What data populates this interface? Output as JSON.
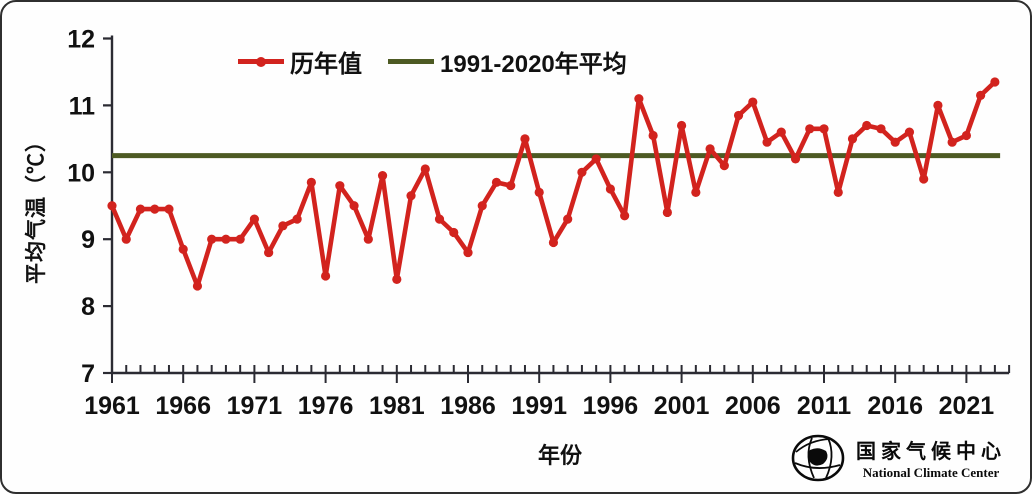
{
  "figure": {
    "y_axis_label": "平均气温（℃）",
    "x_axis_label": "年份",
    "legend": [
      {
        "label": "历年值",
        "type": "line-with-marker",
        "color": "#d2231e"
      },
      {
        "label": "1991-2020年平均",
        "type": "line",
        "color": "#4d5a23"
      }
    ],
    "logo": {
      "cn": "国家气候中心",
      "en": "National Climate Center"
    }
  },
  "chart_data": {
    "type": "line",
    "title": "",
    "xlabel": "年份",
    "ylabel": "平均气温（℃）",
    "ylim": [
      7,
      12
    ],
    "yticks": [
      7,
      8,
      9,
      10,
      11,
      12
    ],
    "xticks": [
      1961,
      1966,
      1971,
      1976,
      1981,
      1986,
      1991,
      1996,
      2001,
      2006,
      2011,
      2016,
      2021
    ],
    "grid": false,
    "legend_position": "top",
    "x": [
      1961,
      1962,
      1963,
      1964,
      1965,
      1966,
      1967,
      1968,
      1969,
      1970,
      1971,
      1972,
      1973,
      1974,
      1975,
      1976,
      1977,
      1978,
      1979,
      1980,
      1981,
      1982,
      1983,
      1984,
      1985,
      1986,
      1987,
      1988,
      1989,
      1990,
      1991,
      1992,
      1993,
      1994,
      1995,
      1996,
      1997,
      1998,
      1999,
      2000,
      2001,
      2002,
      2003,
      2004,
      2005,
      2006,
      2007,
      2008,
      2009,
      2010,
      2011,
      2012,
      2013,
      2014,
      2015,
      2016,
      2017,
      2018,
      2019,
      2020,
      2021,
      2022,
      2023
    ],
    "series": [
      {
        "name": "历年值",
        "color": "#d2231e",
        "marker": "circle",
        "values": [
          9.5,
          9.0,
          9.45,
          9.45,
          9.45,
          8.85,
          8.3,
          9.0,
          9.0,
          9.0,
          9.3,
          8.8,
          9.2,
          9.3,
          9.85,
          8.45,
          9.8,
          9.5,
          9.0,
          9.95,
          8.4,
          9.65,
          10.05,
          9.3,
          9.1,
          8.8,
          9.5,
          9.85,
          9.8,
          10.5,
          9.7,
          8.95,
          9.3,
          10.0,
          10.2,
          9.75,
          9.35,
          11.1,
          10.55,
          9.4,
          10.7,
          9.7,
          10.35,
          10.1,
          10.85,
          11.05,
          10.45,
          10.6,
          10.2,
          10.65,
          10.65,
          9.7,
          10.5,
          10.7,
          10.65,
          10.45,
          10.6,
          9.9,
          11.0,
          10.45,
          10.55,
          11.15,
          11.35
        ]
      },
      {
        "name": "1991-2020年平均",
        "color": "#4d5a23",
        "type": "constant",
        "value": 10.25
      }
    ]
  }
}
